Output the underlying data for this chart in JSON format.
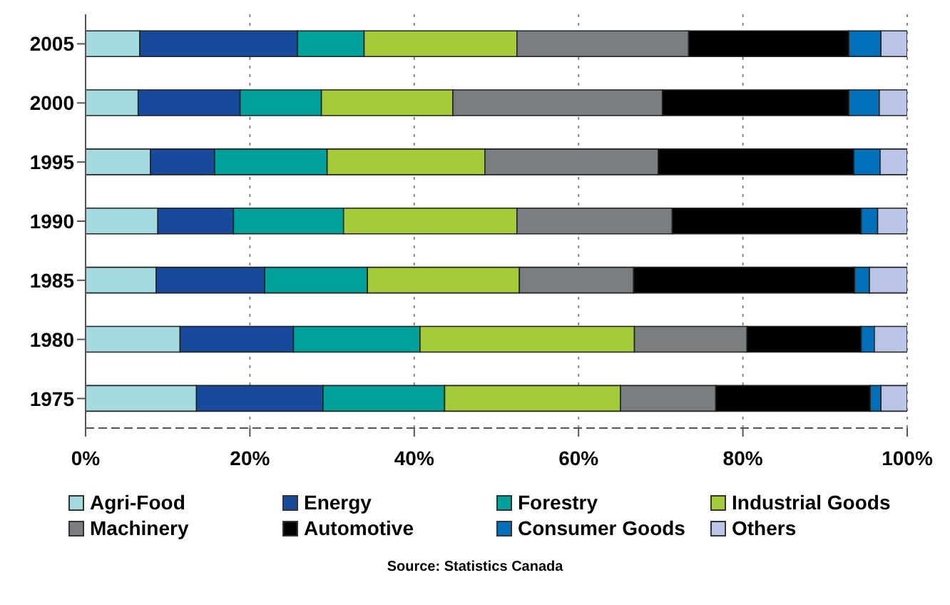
{
  "chart_data": {
    "type": "bar",
    "orientation": "horizontal",
    "stacked": true,
    "categories": [
      "2005",
      "2000",
      "1995",
      "1990",
      "1985",
      "1980",
      "1975"
    ],
    "series": [
      {
        "name": "Agri-Food",
        "color": "#a3dbe0",
        "values": [
          6.6,
          6.4,
          7.9,
          8.8,
          8.6,
          11.5,
          13.5
        ]
      },
      {
        "name": "Energy",
        "color": "#174a9c",
        "values": [
          19.2,
          12.4,
          7.8,
          9.2,
          13.2,
          13.8,
          15.4
        ]
      },
      {
        "name": "Forestry",
        "color": "#00a19a",
        "values": [
          8.1,
          9.9,
          13.7,
          13.4,
          12.5,
          15.4,
          14.8
        ]
      },
      {
        "name": "Industrial Goods",
        "color": "#a3cc38",
        "values": [
          18.6,
          16.0,
          19.2,
          21.1,
          18.5,
          26.1,
          21.4
        ]
      },
      {
        "name": "Machinery",
        "color": "#7b7e80",
        "values": [
          20.9,
          25.5,
          21.1,
          18.9,
          13.9,
          13.7,
          11.6
        ]
      },
      {
        "name": "Automotive",
        "color": "#000000",
        "values": [
          19.5,
          22.7,
          23.8,
          23.0,
          26.9,
          13.9,
          18.8
        ]
      },
      {
        "name": "Consumer Goods",
        "color": "#0070bb",
        "values": [
          3.9,
          3.7,
          3.2,
          2.0,
          1.8,
          1.6,
          1.3
        ]
      },
      {
        "name": "Others",
        "color": "#bac4e6",
        "values": [
          3.2,
          3.4,
          3.3,
          3.6,
          4.6,
          4.0,
          3.2
        ]
      }
    ],
    "xlim": [
      0,
      100
    ],
    "xticks": [
      {
        "value": 0,
        "label": "0%"
      },
      {
        "value": 20,
        "label": "20%"
      },
      {
        "value": 40,
        "label": "40%"
      },
      {
        "value": 60,
        "label": "60%"
      },
      {
        "value": 80,
        "label": "80%"
      },
      {
        "value": 100,
        "label": "100%"
      }
    ],
    "grid": "x",
    "legend": "bottom",
    "annotations": [
      "Source: Statistics Canada"
    ]
  }
}
